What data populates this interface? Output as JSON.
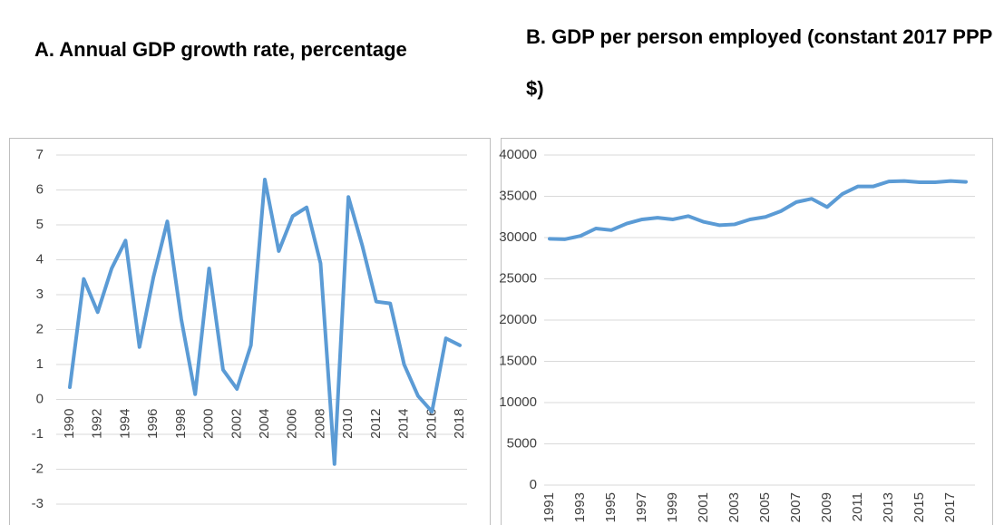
{
  "chart_data": [
    {
      "type": "line",
      "title": "A. Annual GDP growth rate, percentage",
      "categories": [
        "1990",
        null,
        "1992",
        null,
        "1994",
        null,
        "1996",
        null,
        "1998",
        null,
        "2000",
        null,
        "2002",
        null,
        "2004",
        null,
        "2006",
        null,
        "2008",
        null,
        "2010",
        null,
        "2012",
        null,
        "2014",
        null,
        "2016",
        null,
        "2018"
      ],
      "values": [
        0.35,
        3.45,
        2.5,
        3.75,
        4.55,
        1.5,
        3.5,
        5.1,
        2.3,
        0.15,
        3.75,
        0.85,
        0.3,
        1.55,
        6.3,
        4.25,
        5.25,
        5.5,
        3.9,
        -1.85,
        5.8,
        4.4,
        2.8,
        2.75,
        1.0,
        0.1,
        -0.35,
        1.75,
        1.55
      ],
      "color": "#5b9bd5",
      "ylim": [
        -3,
        7
      ],
      "yticks": [
        -3,
        -2,
        -1,
        0,
        1,
        2,
        3,
        4,
        5,
        6,
        7
      ],
      "grid": true
    },
    {
      "type": "line",
      "title": "B. GDP per person employed (constant 2017 PPP $)",
      "categories": [
        "1991",
        null,
        "1993",
        null,
        "1995",
        null,
        "1997",
        null,
        "1999",
        null,
        "2001",
        null,
        "2003",
        null,
        "2005",
        null,
        "2007",
        null,
        "2009",
        null,
        "2011",
        null,
        "2013",
        null,
        "2015",
        null,
        "2017",
        null
      ],
      "values": [
        29850,
        29800,
        30200,
        31100,
        30900,
        31700,
        32200,
        32400,
        32200,
        32600,
        31900,
        31500,
        31600,
        32200,
        32500,
        33200,
        34300,
        34700,
        33700,
        35300,
        36200,
        36200,
        36800,
        36850,
        36700,
        36700,
        36850,
        36750
      ],
      "color": "#5b9bd5",
      "ylim": [
        0,
        40000
      ],
      "yticks": [
        0,
        5000,
        10000,
        15000,
        20000,
        25000,
        30000,
        35000,
        40000
      ],
      "grid": true
    }
  ]
}
